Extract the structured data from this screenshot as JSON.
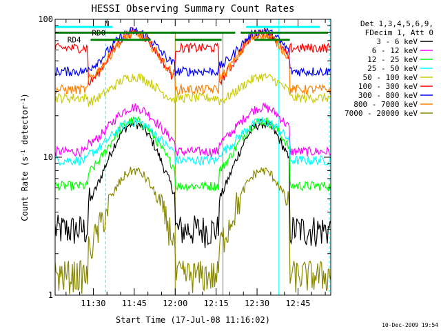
{
  "chart_data": {
    "type": "line",
    "title": "HESSI Observing Summary Count Rates",
    "xlabel": "Start Time (17-Jul-08 11:16:02)",
    "ylabel_main": "Count Rate (s",
    "ylabel_sup1": "-1",
    "ylabel_mid": " detector",
    "ylabel_sup2": "-1",
    "ylabel_end": ")",
    "x_ticks": [
      "11:30",
      "11:45",
      "12:00",
      "12:15",
      "12:30",
      "12:45"
    ],
    "x_tick_minutes": [
      14,
      29,
      44,
      59,
      74,
      89
    ],
    "xlim_minutes": [
      0,
      101
    ],
    "y_scale": "log",
    "ylim": [
      1,
      100
    ],
    "y_ticks": [
      "1",
      "10",
      "100"
    ],
    "y_tick_values": [
      1,
      10,
      100
    ],
    "legend": {
      "header1": "Det 1,3,4,5,6,9,",
      "header2": "FDecim 1, Att 0",
      "entries": [
        {
          "label": "3 - 6 keV",
          "color": "#000000"
        },
        {
          "label": "6 - 12 keV",
          "color": "#ff00ff"
        },
        {
          "label": "12 - 25 keV",
          "color": "#00ff00"
        },
        {
          "label": "25 - 50 keV",
          "color": "#00ffff"
        },
        {
          "label": "50 - 100 keV",
          "color": "#cccc00"
        },
        {
          "label": "100 - 300 keV",
          "color": "#ff0000"
        },
        {
          "label": "300 - 800 keV",
          "color": "#0000ff"
        },
        {
          "label": "800 - 7000 keV",
          "color": "#ff8000"
        },
        {
          "label": "7000 - 20000 keV",
          "color": "#888800"
        }
      ]
    },
    "flags": [
      {
        "label": "N",
        "color": "#00ffff"
      },
      {
        "label": "RD0",
        "color": "#008000"
      },
      {
        "label": "RD4",
        "color": "#008000"
      }
    ],
    "vertical_markers_minutes": [
      0,
      18.5,
      82,
      100.5
    ],
    "footer_timestamp": "10-Dec-2009 19:54",
    "series": [
      {
        "name": "3 - 6 keV",
        "color": "#000000",
        "night": 3.0,
        "base": 3.5,
        "peak_factor": 5.0
      },
      {
        "name": "6 - 12 keV",
        "color": "#ff00ff",
        "night": 11.0,
        "base": 11.5,
        "peak_factor": 2.0
      },
      {
        "name": "12 - 25 keV",
        "color": "#00ff00",
        "night": 6.2,
        "base": 6.8,
        "peak_factor": 2.7
      },
      {
        "name": "25 - 50 keV",
        "color": "#00ffff",
        "night": 9.5,
        "base": 9.8,
        "peak_factor": 1.85
      },
      {
        "name": "50 - 100 keV",
        "color": "#cccc00",
        "night": 27,
        "base": 24,
        "peak_factor": 1.6
      },
      {
        "name": "100 - 300 keV",
        "color": "#ff0000",
        "night": 62,
        "base": 30,
        "peak_factor": 2.7
      },
      {
        "name": "300 - 800 keV",
        "color": "#0000ff",
        "night": 42,
        "base": 41,
        "peak_factor": 2.0
      },
      {
        "name": "800 - 7000 keV",
        "color": "#ff8000",
        "night": 31,
        "base": 33,
        "peak_factor": 2.35
      },
      {
        "name": "7000 - 20000 keV",
        "color": "#888800",
        "night": 1.4,
        "base": 1.6,
        "peak_factor": 5.0
      }
    ]
  }
}
